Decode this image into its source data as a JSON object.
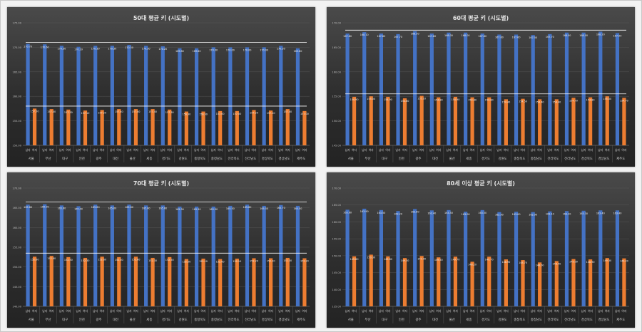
{
  "chart_data": [
    {
      "type": "bar",
      "title": "50대 평균 키 (시도별)",
      "regions": [
        "서울",
        "부산",
        "대구",
        "인천",
        "광주",
        "대전",
        "울산",
        "세종",
        "경기도",
        "강원도",
        "충청북도",
        "충청남도",
        "전라북도",
        "전라남도",
        "경상북도",
        "경상남도",
        "제주도"
      ],
      "series_labels": [
        "남자",
        "여자"
      ],
      "series": [
        {
          "name": "남자",
          "color": "#4472c4",
          "values": [
            170.7,
            170.6,
            170.3,
            170.1,
            170.3,
            170.3,
            170.5,
            170.3,
            170.2,
            169.8,
            169.8,
            170.0,
            170.0,
            170.0,
            170.0,
            170.3,
            169.8
          ]
        },
        {
          "name": "여자",
          "color": "#ed7d31",
          "values": [
            157.5,
            157.4,
            157.3,
            157.1,
            157.2,
            157.4,
            157.4,
            157.4,
            157.3,
            156.9,
            156.9,
            157.0,
            157.0,
            157.2,
            157.1,
            157.4,
            157.0
          ]
        }
      ],
      "ylim": [
        150,
        175
      ],
      "yticks": [
        "150.00",
        "155.00",
        "160.00",
        "165.00",
        "170.00",
        "175.00"
      ],
      "reference_lines": [
        171.0,
        158.0
      ]
    },
    {
      "type": "bar",
      "title": "60대 평균 키 (시도별)",
      "regions": [
        "서울",
        "부산",
        "대구",
        "인천",
        "광주",
        "대전",
        "울산",
        "세종",
        "경기도",
        "강원도",
        "충청북도",
        "충청남도",
        "전라북도",
        "전라남도",
        "경상북도",
        "경상남도",
        "제주도"
      ],
      "series_labels": [
        "남자",
        "여자"
      ],
      "series": [
        {
          "name": "남자",
          "color": "#4472c4",
          "values": [
            167.8,
            168.1,
            167.8,
            167.7,
            168.3,
            167.8,
            168.0,
            168.0,
            167.8,
            167.6,
            167.6,
            167.5,
            167.7,
            168.0,
            168.0,
            168.2,
            167.9
          ]
        },
        {
          "name": "여자",
          "color": "#ed7d31",
          "values": [
            154.9,
            155.0,
            154.9,
            154.6,
            155.1,
            154.8,
            154.9,
            154.8,
            154.8,
            154.4,
            154.5,
            154.4,
            154.4,
            154.7,
            154.8,
            155.0,
            154.7
          ]
        }
      ],
      "ylim": [
        145,
        170
      ],
      "yticks": [
        "145.00",
        "150.00",
        "155.00",
        "160.00",
        "165.00",
        "170.00"
      ],
      "reference_lines": [
        168.5,
        155.5
      ]
    },
    {
      "type": "bar",
      "title": "70대 평균 키 (시도별)",
      "regions": [
        "서울",
        "부산",
        "대구",
        "인천",
        "광주",
        "대전",
        "울산",
        "세종",
        "경기도",
        "강원도",
        "충청북도",
        "충청남도",
        "전라북도",
        "전라남도",
        "경상북도",
        "경상남도",
        "제주도"
      ],
      "series_labels": [
        "남자",
        "여자"
      ],
      "series": [
        {
          "name": "남자",
          "color": "#4472c4",
          "values": [
            165.8,
            165.9,
            165.6,
            165.4,
            165.8,
            165.6,
            165.8,
            165.6,
            165.6,
            165.3,
            165.3,
            165.3,
            165.5,
            165.8,
            165.5,
            165.7,
            165.5
          ]
        },
        {
          "name": "여자",
          "color": "#ed7d31",
          "values": [
            152.6,
            152.8,
            152.5,
            152.3,
            152.6,
            152.5,
            152.6,
            152.3,
            152.5,
            152.0,
            152.1,
            152.0,
            152.1,
            152.2,
            152.2,
            152.3,
            152.2
          ]
        }
      ],
      "ylim": [
        140,
        170
      ],
      "yticks": [
        "140.00",
        "145.00",
        "150.00",
        "155.00",
        "160.00",
        "165.00",
        "170.00"
      ],
      "reference_lines": [
        166.5,
        153.5
      ]
    },
    {
      "type": "bar",
      "title": "80세 이상 평균 키 (시도별)",
      "regions": [
        "서울",
        "부산",
        "대구",
        "인천",
        "광주",
        "대전",
        "울산",
        "세종",
        "경기도",
        "강원도",
        "충청북도",
        "충청남도",
        "전라북도",
        "전라남도",
        "경상북도",
        "경상남도",
        "제주도"
      ],
      "series_labels": [
        "남자",
        "여자"
      ],
      "series": [
        {
          "name": "남자",
          "color": "#4472c4",
          "values": [
            163.6,
            163.9,
            163.5,
            163.2,
            163.8,
            163.4,
            163.5,
            163.0,
            163.5,
            162.9,
            163.0,
            162.9,
            163.1,
            163.2,
            163.3,
            163.4,
            163.4
          ]
        },
        {
          "name": "여자",
          "color": "#ed7d31",
          "values": [
            149.8,
            150.3,
            149.8,
            149.3,
            149.9,
            149.5,
            149.7,
            148.2,
            149.7,
            148.9,
            148.7,
            148.0,
            148.4,
            149.0,
            148.9,
            149.3,
            149.2
          ]
        }
      ],
      "ylim": [
        135,
        170
      ],
      "yticks": [
        "135.00",
        "140.00",
        "145.00",
        "150.00",
        "155.00",
        "160.00",
        "165.00",
        "170.00"
      ],
      "reference_lines": []
    }
  ]
}
